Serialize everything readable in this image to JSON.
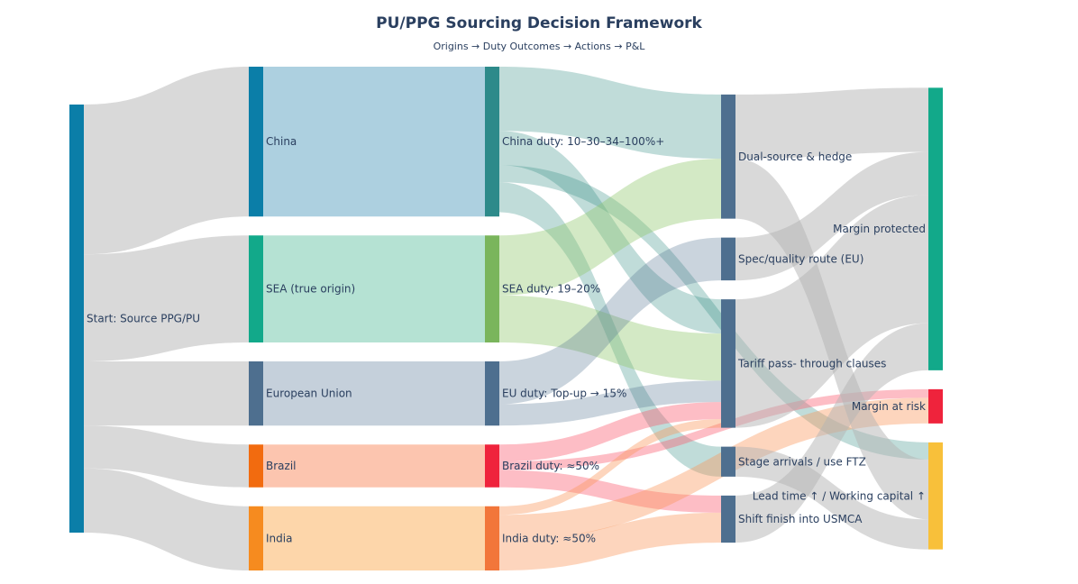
{
  "chart_data": {
    "type": "sankey",
    "title": "PU/PPG Sourcing Decision Framework",
    "subtitle": "Origins → Duty Outcomes → Actions → P&L",
    "nodes": [
      {
        "id": "start",
        "label": "Start: Source PPG/PU",
        "color": "#0b7ea8",
        "column": 0
      },
      {
        "id": "china",
        "label": "China",
        "color": "#0b7ea8",
        "column": 1
      },
      {
        "id": "sea",
        "label": "SEA (true origin)",
        "color": "#12a98a",
        "column": 1
      },
      {
        "id": "eu",
        "label": "European Union",
        "color": "#4e6f8f",
        "column": 1
      },
      {
        "id": "brazil",
        "label": "Brazil",
        "color": "#f26b0f",
        "column": 1
      },
      {
        "id": "india",
        "label": "India",
        "color": "#f68b1f",
        "column": 1
      },
      {
        "id": "china_duty",
        "label": "China duty: 10–30–34–100%+",
        "color": "#2d8a8a",
        "column": 2
      },
      {
        "id": "sea_duty",
        "label": "SEA duty: 19–20%",
        "color": "#7ab55c",
        "column": 2
      },
      {
        "id": "eu_duty",
        "label": "EU duty: Top-up → 15%",
        "color": "#4e6f8f",
        "column": 2
      },
      {
        "id": "brazil_duty",
        "label": "Brazil duty: ≈50%",
        "color": "#ef233c",
        "column": 2
      },
      {
        "id": "india_duty",
        "label": "India duty: ≈50%",
        "color": "#f2763a",
        "column": 2
      },
      {
        "id": "dual",
        "label": "Dual-source & hedge",
        "color": "#4e6f8f",
        "column": 3
      },
      {
        "id": "spec",
        "label": "Spec/quality route (EU)",
        "color": "#4e6f8f",
        "column": 3
      },
      {
        "id": "tariff",
        "label": "Tariff pass- through clauses",
        "color": "#4e6f8f",
        "column": 3
      },
      {
        "id": "stage",
        "label": "Stage arrivals / use FTZ",
        "color": "#4e6f8f",
        "column": 3
      },
      {
        "id": "shift",
        "label": "Shift finish into USMCA",
        "color": "#4e6f8f",
        "column": 3
      },
      {
        "id": "margin_protected",
        "label": "Margin protected",
        "color": "#12a98a",
        "column": 4
      },
      {
        "id": "margin_risk",
        "label": "Margin at risk",
        "color": "#ef233c",
        "column": 4
      },
      {
        "id": "lead_time",
        "label": "Lead time ↑ / Working capital ↑",
        "color": "#f8c03a",
        "column": 4
      }
    ],
    "links": [
      {
        "source": "start",
        "target": "china",
        "value": 35,
        "color": "rgba(180,180,180,0.5)"
      },
      {
        "source": "start",
        "target": "sea",
        "value": 25,
        "color": "rgba(180,180,180,0.5)"
      },
      {
        "source": "start",
        "target": "eu",
        "value": 15,
        "color": "rgba(180,180,180,0.5)"
      },
      {
        "source": "start",
        "target": "brazil",
        "value": 10,
        "color": "rgba(180,180,180,0.5)"
      },
      {
        "source": "start",
        "target": "india",
        "value": 15,
        "color": "rgba(180,180,180,0.5)"
      },
      {
        "source": "china",
        "target": "china_duty",
        "value": 35,
        "color": "rgba(106,169,198,0.55)"
      },
      {
        "source": "sea",
        "target": "sea_duty",
        "value": 25,
        "color": "rgba(120,203,175,0.55)"
      },
      {
        "source": "eu",
        "target": "eu_duty",
        "value": 15,
        "color": "rgba(150,170,190,0.55)"
      },
      {
        "source": "brazil",
        "target": "brazil_duty",
        "value": 10,
        "color": "rgba(250,150,110,0.55)"
      },
      {
        "source": "india",
        "target": "india_duty",
        "value": 15,
        "color": "rgba(252,180,100,0.55)"
      },
      {
        "source": "china_duty",
        "target": "dual",
        "value": 15,
        "color": "rgba(45,138,128,0.3)"
      },
      {
        "source": "china_duty",
        "target": "tariff",
        "value": 8,
        "color": "rgba(45,138,128,0.3)"
      },
      {
        "source": "china_duty",
        "target": "stage",
        "value": 7,
        "color": "rgba(45,138,128,0.3)"
      },
      {
        "source": "china_duty",
        "target": "lead_time",
        "value": 4,
        "color": "rgba(45,138,128,0.3)"
      },
      {
        "source": "sea_duty",
        "target": "dual",
        "value": 14,
        "color": "rgba(145,200,110,0.4)"
      },
      {
        "source": "sea_duty",
        "target": "tariff",
        "value": 11,
        "color": "rgba(145,200,110,0.4)"
      },
      {
        "source": "eu_duty",
        "target": "spec",
        "value": 10,
        "color": "rgba(78,111,143,0.3)"
      },
      {
        "source": "eu_duty",
        "target": "tariff",
        "value": 5,
        "color": "rgba(78,111,143,0.3)"
      },
      {
        "source": "brazil_duty",
        "target": "tariff",
        "value": 4,
        "color": "rgba(250,90,110,0.4)"
      },
      {
        "source": "brazil_duty",
        "target": "margin_risk",
        "value": 2,
        "color": "rgba(250,90,110,0.4)"
      },
      {
        "source": "brazil_duty",
        "target": "shift",
        "value": 4,
        "color": "rgba(250,90,110,0.4)"
      },
      {
        "source": "india_duty",
        "target": "tariff",
        "value": 2,
        "color": "rgba(250,150,90,0.4)"
      },
      {
        "source": "india_duty",
        "target": "margin_risk",
        "value": 6,
        "color": "rgba(250,150,90,0.4)"
      },
      {
        "source": "india_duty",
        "target": "shift",
        "value": 7,
        "color": "rgba(250,150,90,0.4)"
      },
      {
        "source": "dual",
        "target": "margin_protected",
        "value": 15,
        "color": "rgba(180,180,180,0.5)"
      },
      {
        "source": "dual",
        "target": "lead_time",
        "value": 14,
        "color": "rgba(180,180,180,0.5)"
      },
      {
        "source": "spec",
        "target": "margin_protected",
        "value": 10,
        "color": "rgba(180,180,180,0.5)"
      },
      {
        "source": "tariff",
        "target": "margin_protected",
        "value": 30,
        "color": "rgba(180,180,180,0.5)"
      },
      {
        "source": "stage",
        "target": "lead_time",
        "value": 7,
        "color": "rgba(180,180,180,0.5)"
      },
      {
        "source": "shift",
        "target": "margin_protected",
        "value": 11,
        "color": "rgba(180,180,180,0.5)"
      }
    ]
  }
}
